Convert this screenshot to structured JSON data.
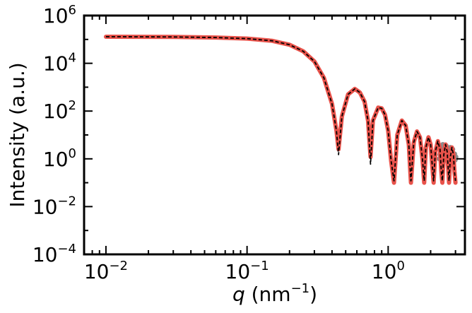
{
  "chart_data": {
    "type": "line",
    "xscale": "log",
    "yscale": "log",
    "xlim": [
      0.007,
      3.5
    ],
    "ylim": [
      0.0001,
      1000000
    ],
    "x_ticks": [
      {
        "value": 0.01,
        "base": "10",
        "exp": "−2"
      },
      {
        "value": 0.1,
        "base": "10",
        "exp": "−1"
      },
      {
        "value": 1,
        "base": "10",
        "exp": "0"
      }
    ],
    "y_ticks": [
      {
        "value": 0.0001,
        "base": "10",
        "exp": "−4"
      },
      {
        "value": 0.01,
        "base": "10",
        "exp": "−2"
      },
      {
        "value": 1,
        "base": "10",
        "exp": "0"
      },
      {
        "value": 100,
        "base": "10",
        "exp": "2"
      },
      {
        "value": 10000,
        "base": "10",
        "exp": "4"
      },
      {
        "value": 1000000,
        "base": "10",
        "exp": "6"
      }
    ],
    "xlabel": {
      "symbol": "q",
      "unit_prefix": " (nm",
      "unit_exp": "−1",
      "unit_suffix": ")"
    },
    "ylabel": "Intensity (a.u.)",
    "grid": false,
    "legend": "none",
    "series": [
      {
        "style": "red-thick-line",
        "color": "#e8524a",
        "points": [
          [
            0.01,
            130000
          ],
          [
            0.03,
            127000
          ],
          [
            0.06,
            120000
          ],
          [
            0.1,
            108000
          ],
          [
            0.15,
            88000
          ],
          [
            0.2,
            60000
          ],
          [
            0.25,
            32000
          ],
          [
            0.3,
            12000
          ],
          [
            0.35,
            2500
          ],
          [
            0.4,
            200
          ],
          [
            0.43,
            15
          ],
          [
            0.445,
            2.5
          ],
          [
            0.47,
            60
          ],
          [
            0.52,
            500
          ],
          [
            0.58,
            850
          ],
          [
            0.63,
            600
          ],
          [
            0.68,
            250
          ],
          [
            0.72,
            40
          ],
          [
            0.75,
            1.2
          ],
          [
            0.78,
            40
          ],
          [
            0.85,
            140
          ],
          [
            0.9,
            130
          ],
          [
            0.95,
            70
          ],
          [
            1.0,
            15
          ],
          [
            1.05,
            0.8
          ],
          [
            1.1,
            0.1
          ],
          [
            1.16,
            10
          ],
          [
            1.25,
            40
          ],
          [
            1.33,
            25
          ],
          [
            1.4,
            4
          ],
          [
            1.45,
            0.1
          ],
          [
            1.52,
            5
          ],
          [
            1.6,
            14
          ],
          [
            1.68,
            8
          ],
          [
            1.75,
            1
          ],
          [
            1.8,
            0.1
          ],
          [
            1.85,
            3
          ],
          [
            1.93,
            8
          ],
          [
            2.0,
            4
          ],
          [
            2.05,
            0.6
          ],
          [
            2.1,
            0.1
          ],
          [
            2.16,
            2
          ],
          [
            2.25,
            5.5
          ],
          [
            2.33,
            2.5
          ],
          [
            2.38,
            0.3
          ],
          [
            2.42,
            0.1
          ],
          [
            2.48,
            1.5
          ],
          [
            2.55,
            4
          ],
          [
            2.62,
            2
          ],
          [
            2.67,
            0.3
          ],
          [
            2.7,
            0.1
          ],
          [
            2.76,
            1.2
          ],
          [
            2.83,
            3
          ],
          [
            2.9,
            1.5
          ],
          [
            2.95,
            0.3
          ],
          [
            3.0,
            0.1
          ]
        ]
      },
      {
        "style": "black-dashed-line",
        "color": "#000000",
        "points": [
          [
            0.01,
            130000
          ],
          [
            0.03,
            127000
          ],
          [
            0.06,
            120000
          ],
          [
            0.1,
            108000
          ],
          [
            0.15,
            88000
          ],
          [
            0.2,
            60000
          ],
          [
            0.25,
            32000
          ],
          [
            0.3,
            12000
          ],
          [
            0.35,
            2500
          ],
          [
            0.4,
            200
          ],
          [
            0.43,
            15
          ],
          [
            0.445,
            1.5
          ],
          [
            0.47,
            60
          ],
          [
            0.52,
            500
          ],
          [
            0.58,
            850
          ],
          [
            0.63,
            600
          ],
          [
            0.68,
            250
          ],
          [
            0.72,
            40
          ],
          [
            0.75,
            0.6
          ],
          [
            0.78,
            40
          ],
          [
            0.85,
            140
          ],
          [
            0.9,
            130
          ],
          [
            0.95,
            70
          ],
          [
            1.0,
            15
          ],
          [
            1.05,
            0.8
          ],
          [
            1.1,
            0.12
          ],
          [
            1.16,
            10
          ],
          [
            1.25,
            40
          ],
          [
            1.33,
            25
          ],
          [
            1.4,
            4
          ],
          [
            1.45,
            0.12
          ],
          [
            1.52,
            5
          ],
          [
            1.6,
            14
          ],
          [
            1.68,
            8
          ],
          [
            1.75,
            1
          ],
          [
            1.8,
            0.12
          ],
          [
            1.85,
            3
          ],
          [
            1.93,
            8
          ],
          [
            2.0,
            4
          ],
          [
            2.05,
            0.6
          ],
          [
            2.1,
            0.12
          ],
          [
            2.16,
            2
          ],
          [
            2.25,
            5.5
          ],
          [
            2.33,
            2.5
          ],
          [
            2.38,
            0.3
          ],
          [
            2.42,
            0.12
          ],
          [
            2.48,
            1.5
          ],
          [
            2.55,
            4
          ],
          [
            2.62,
            2
          ],
          [
            2.67,
            0.3
          ],
          [
            2.7,
            0.12
          ],
          [
            2.76,
            1.2
          ],
          [
            2.83,
            3
          ],
          [
            2.9,
            1.5
          ],
          [
            2.95,
            0.3
          ],
          [
            3.0,
            0.12
          ]
        ]
      },
      {
        "style": "gray-markers",
        "color": "#8c8c8c",
        "points": [
          [
            2.3,
            1.0
          ],
          [
            2.33,
            1.5
          ],
          [
            2.36,
            3.0
          ],
          [
            2.38,
            1.2
          ],
          [
            2.4,
            0.9
          ],
          [
            2.42,
            2.0
          ],
          [
            2.44,
            4.0
          ],
          [
            2.46,
            1.1
          ],
          [
            2.5,
            1.3
          ],
          [
            2.53,
            2.5
          ],
          [
            2.56,
            0.9
          ],
          [
            2.58,
            3.5
          ],
          [
            2.6,
            1.2
          ],
          [
            2.63,
            1.0
          ],
          [
            2.66,
            2.2
          ],
          [
            2.7,
            0.9
          ],
          [
            2.72,
            1.3
          ],
          [
            2.75,
            3.0
          ],
          [
            2.78,
            1.0
          ],
          [
            2.8,
            1.8
          ],
          [
            2.84,
            0.9
          ],
          [
            2.87,
            2.5
          ],
          [
            2.9,
            1.1
          ],
          [
            2.93,
            1.0
          ],
          [
            2.96,
            1.6
          ],
          [
            2.99,
            0.9
          ],
          [
            3.02,
            1.2
          ]
        ]
      }
    ]
  }
}
